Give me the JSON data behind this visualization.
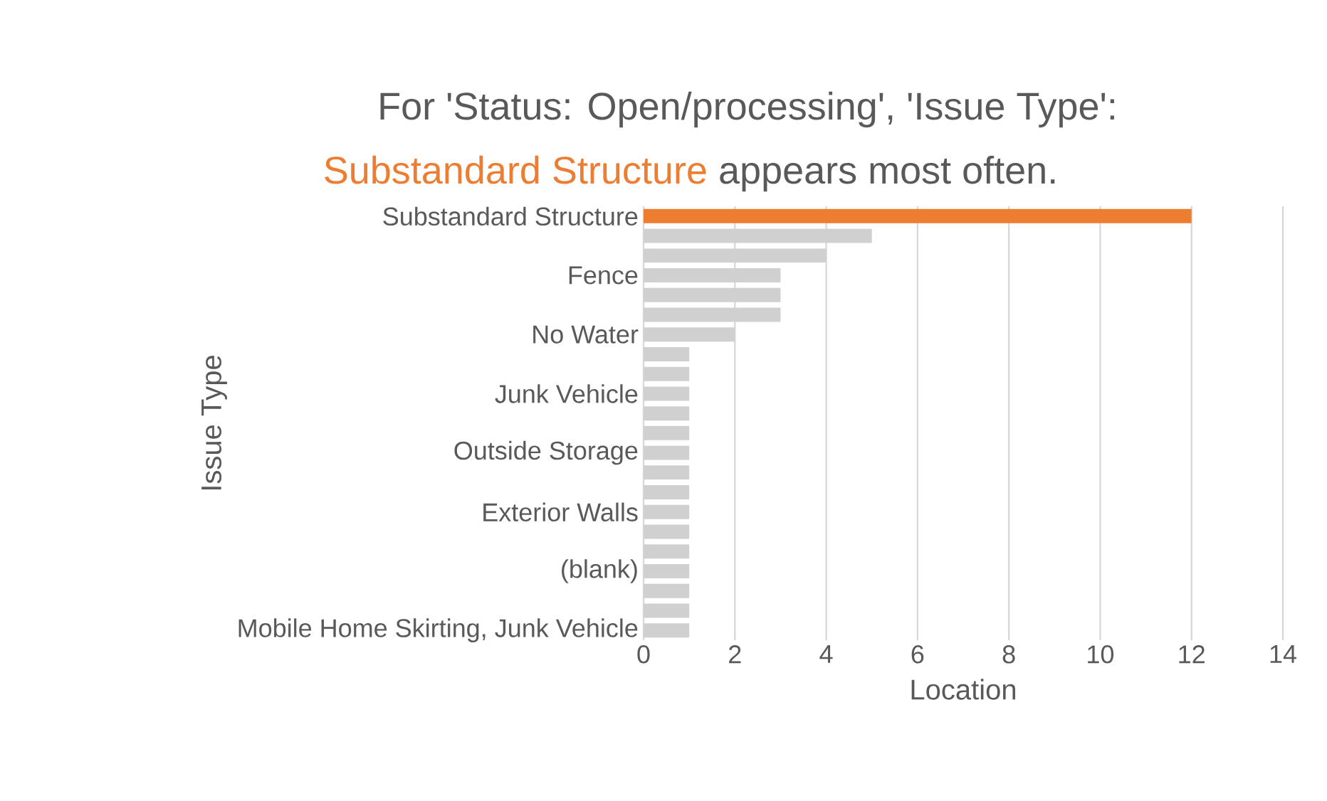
{
  "chart_data": {
    "type": "bar",
    "orientation": "horizontal",
    "title": "For 'Status: Open/processing', 'Issue Type':",
    "annotations": [
      "Substandard Structure",
      "appears most often."
    ],
    "xlabel": "Location",
    "ylabel": "Issue Type",
    "categories": [
      "Substandard Structure",
      null,
      null,
      "Fence",
      null,
      null,
      "No Water",
      null,
      null,
      "Junk Vehicle",
      null,
      null,
      "Outside Storage",
      null,
      null,
      "Exterior Walls",
      null,
      null,
      "(blank)",
      null,
      null,
      "Mobile Home Skirting, Junk Vehicle"
    ],
    "values": [
      12,
      5,
      4,
      3,
      3,
      3,
      2,
      1,
      1,
      1,
      1,
      1,
      1,
      1,
      1,
      1,
      1,
      1,
      1,
      1,
      1,
      1
    ],
    "colors": [
      "#ed7d31",
      "#d0d0d0",
      "#d0d0d0",
      "#d0d0d0",
      "#d0d0d0",
      "#d0d0d0",
      "#d0d0d0",
      "#d0d0d0",
      "#d0d0d0",
      "#d0d0d0",
      "#d0d0d0",
      "#d0d0d0",
      "#d0d0d0",
      "#d0d0d0",
      "#d0d0d0",
      "#d0d0d0",
      "#d0d0d0",
      "#d0d0d0",
      "#d0d0d0",
      "#d0d0d0",
      "#d0d0d0",
      "#d0d0d0"
    ],
    "xlim": [
      0,
      14
    ],
    "xticks": [
      0,
      2,
      4,
      6,
      8,
      10,
      12,
      14
    ],
    "grid": "x"
  }
}
